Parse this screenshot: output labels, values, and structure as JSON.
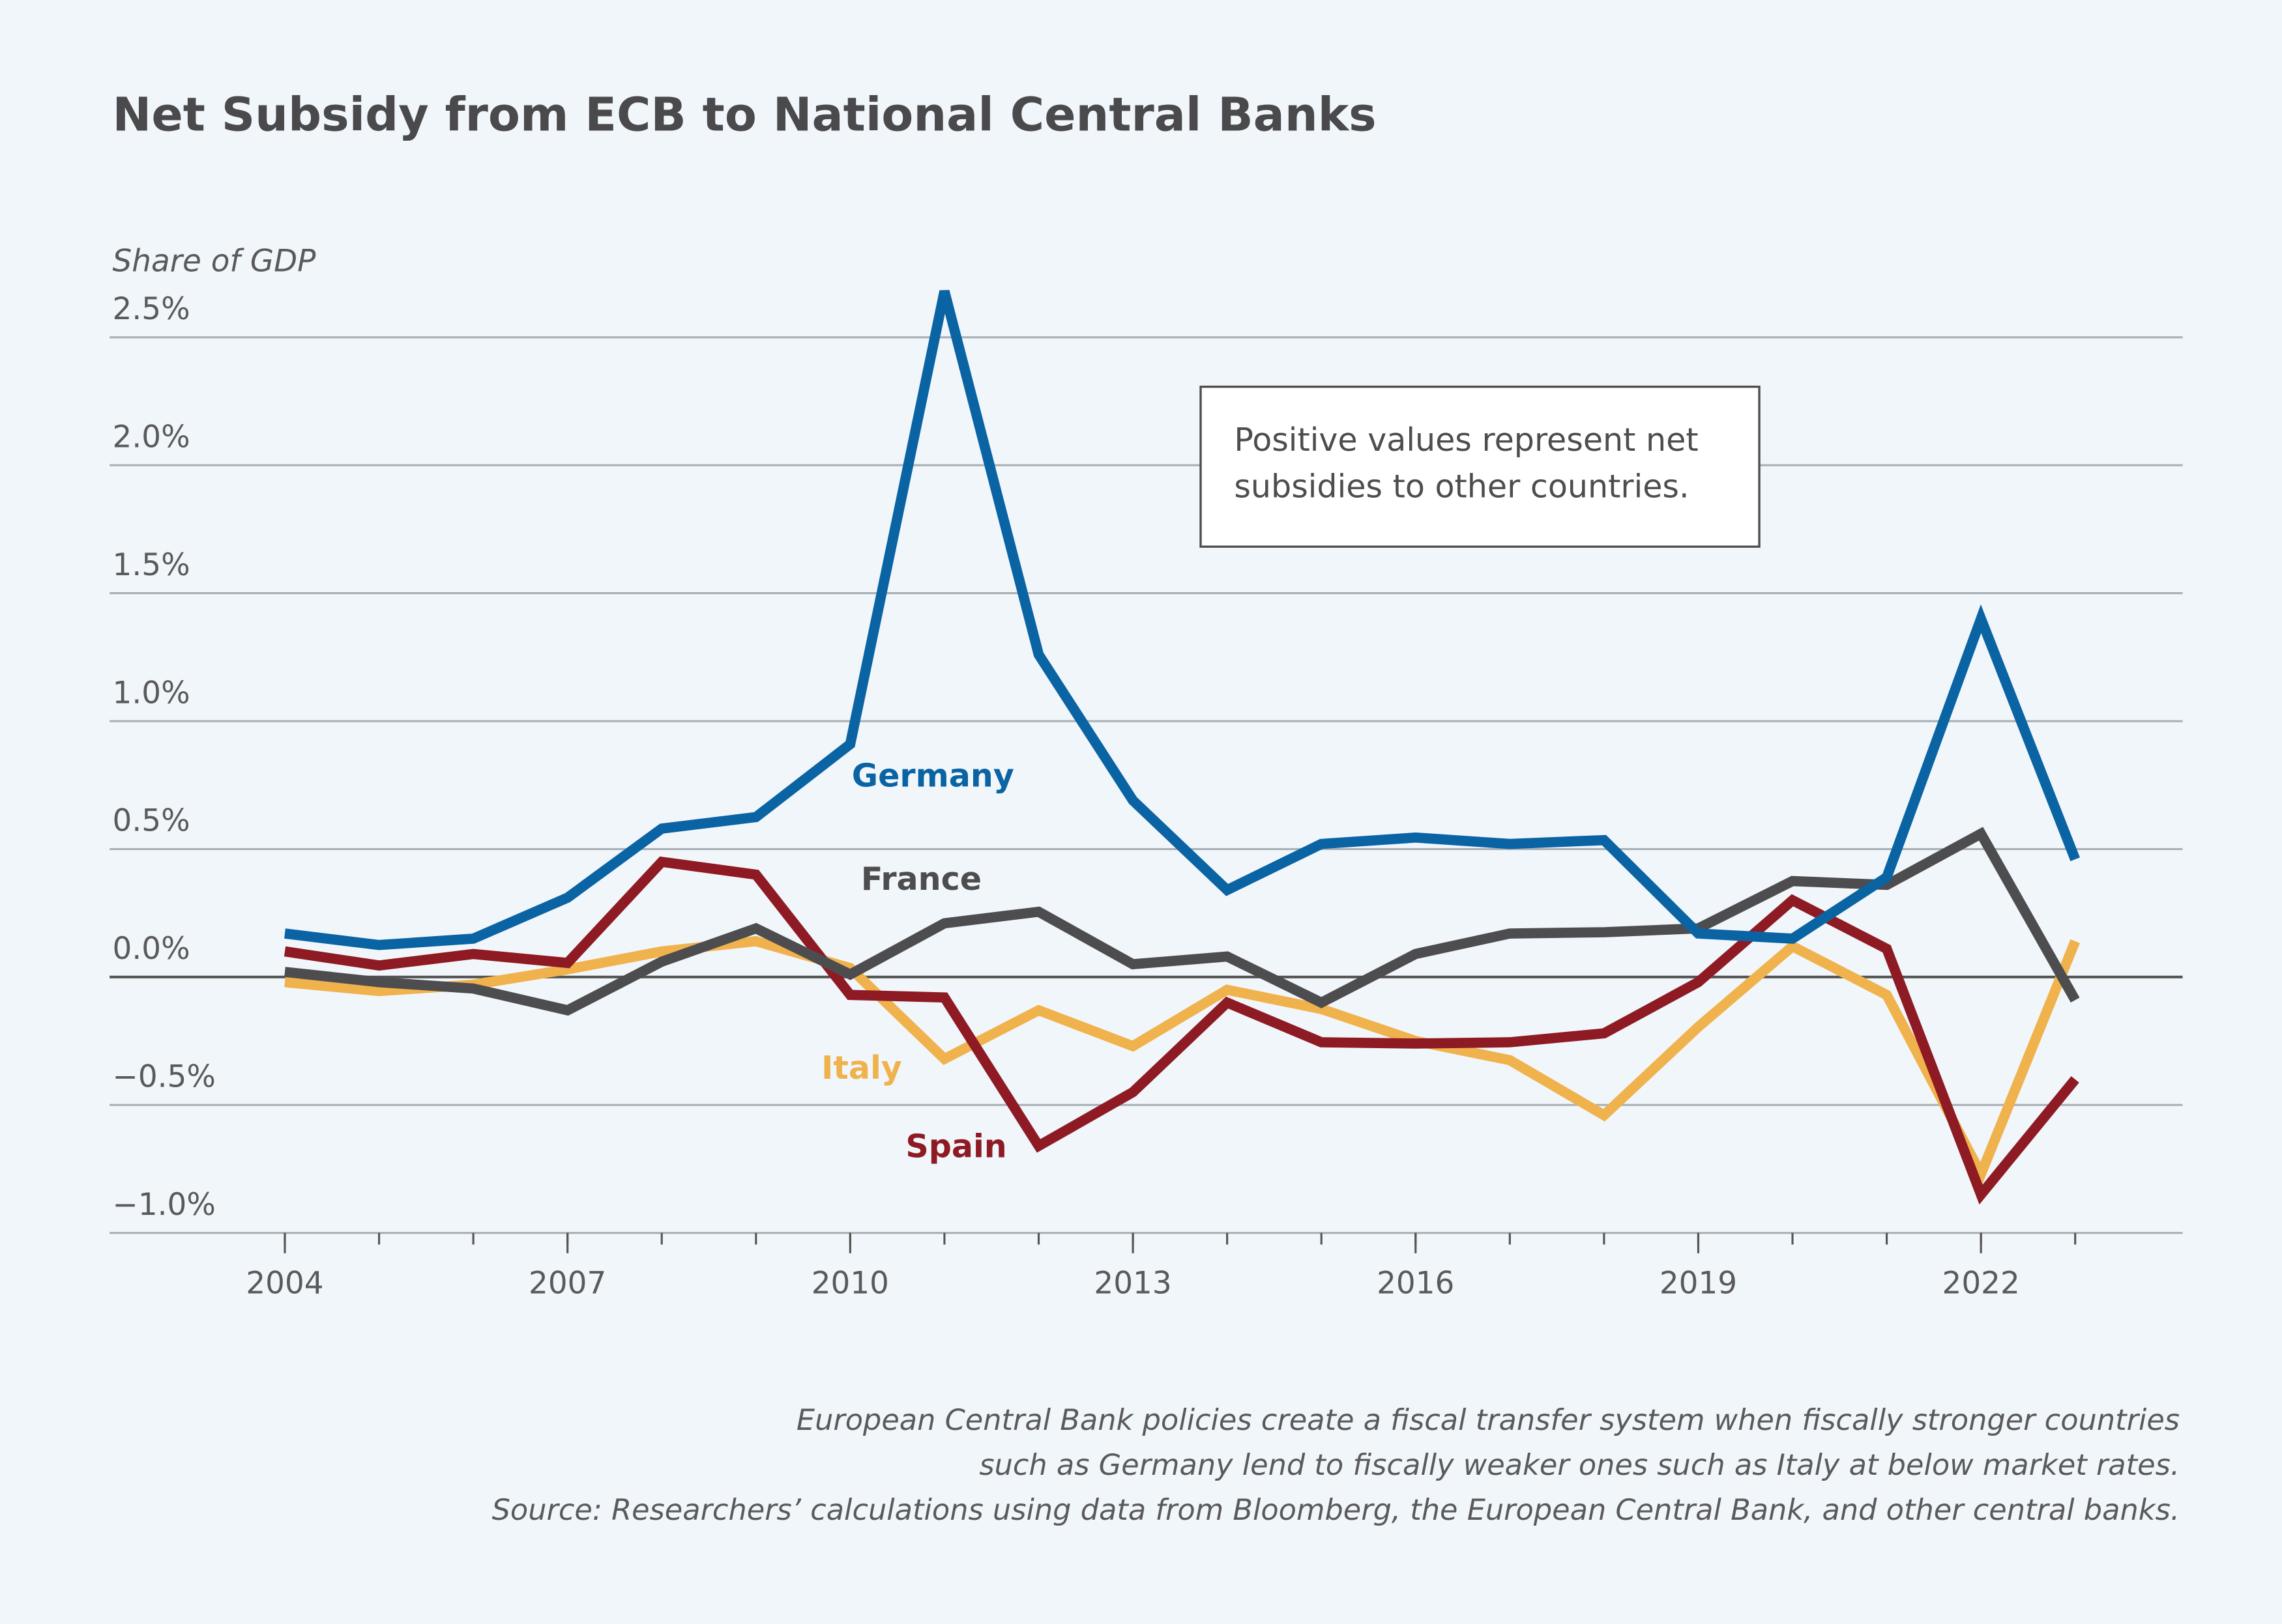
{
  "chart_data": {
    "type": "line",
    "title": "Net Subsidy from ECB to National Central Banks",
    "y_label": "Share of GDP",
    "annotation": [
      "Positive values represent net",
      "subsidies to other countries."
    ],
    "caption": [
      "European Central Bank policies create a fiscal transfer system when fiscally stronger countries",
      "such as Germany lend to fiscally weaker ones such as Italy at below market rates.",
      "Source: Researchers’ calculations using data from Bloomberg, the European Central Bank, and other central banks."
    ],
    "x": [
      2004,
      2005,
      2006,
      2007,
      2008,
      2009,
      2010,
      2011,
      2012,
      2013,
      2014,
      2015,
      2016,
      2017,
      2018,
      2019,
      2020,
      2021,
      2022,
      2023
    ],
    "xlim": [
      2002.14,
      2024.14
    ],
    "xticks": [
      2004,
      2007,
      2010,
      2013,
      2016,
      2019,
      2022
    ],
    "ylim": [
      -1.0,
      2.5
    ],
    "yticks": [
      {
        "value": -1.0,
        "label": "−1.0%"
      },
      {
        "value": -0.5,
        "label": "−0.5%"
      },
      {
        "value": 0.0,
        "label": "0.0%"
      },
      {
        "value": 0.5,
        "label": "0.5%"
      },
      {
        "value": 1.0,
        "label": "1.0%"
      },
      {
        "value": 1.5,
        "label": "1.5%"
      },
      {
        "value": 2.0,
        "label": "2.0%"
      },
      {
        "value": 2.5,
        "label": "2.5%"
      }
    ],
    "grid": true,
    "series": [
      {
        "name": "Germany",
        "color": "#0a64a4",
        "values": [
          0.17,
          0.125,
          0.15,
          0.31,
          0.58,
          0.625,
          0.91,
          2.68,
          1.26,
          0.69,
          0.34,
          0.52,
          0.545,
          0.52,
          0.535,
          0.17,
          0.15,
          0.39,
          1.4,
          0.46
        ]
      },
      {
        "name": "France",
        "color": "#4d4d4f",
        "values": [
          0.02,
          -0.02,
          -0.045,
          -0.13,
          0.06,
          0.19,
          0.01,
          0.21,
          0.255,
          0.05,
          0.08,
          -0.1,
          0.09,
          0.17,
          0.175,
          0.19,
          0.375,
          0.36,
          0.56,
          -0.09
        ]
      },
      {
        "name": "Spain",
        "color": "#8e1b24",
        "values": [
          0.1,
          0.045,
          0.09,
          0.055,
          0.45,
          0.4,
          -0.07,
          -0.08,
          -0.66,
          -0.45,
          -0.1,
          -0.255,
          -0.26,
          -0.255,
          -0.22,
          -0.02,
          0.3,
          0.11,
          -0.85,
          -0.4
        ]
      },
      {
        "name": "Italy",
        "color": "#f0b24c",
        "values": [
          -0.02,
          -0.055,
          -0.03,
          0.03,
          0.1,
          0.14,
          0.035,
          -0.32,
          -0.13,
          -0.27,
          -0.05,
          -0.125,
          -0.25,
          -0.325,
          -0.54,
          -0.195,
          0.12,
          -0.07,
          -0.77,
          0.14
        ]
      }
    ]
  }
}
